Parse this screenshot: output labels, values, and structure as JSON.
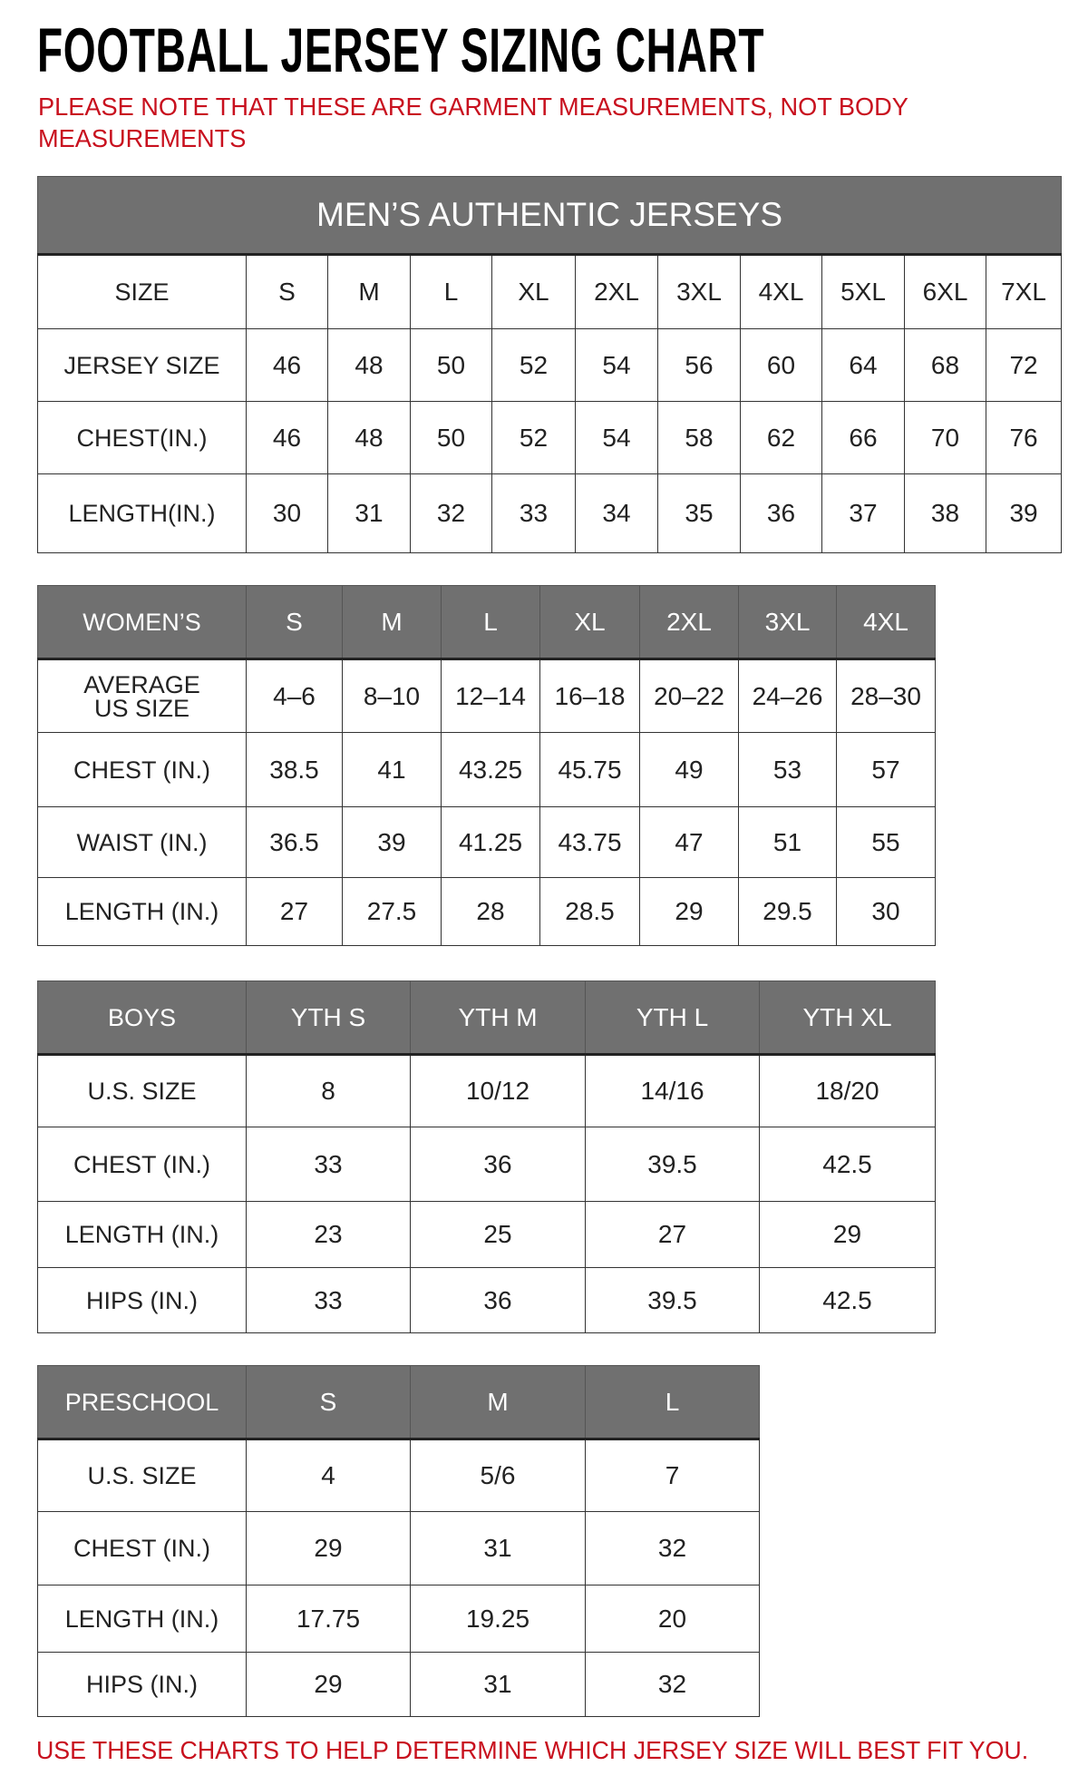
{
  "title": "FOOTBALL JERSEY SIZING CHART",
  "note": "PLEASE NOTE THAT THESE ARE GARMENT MEASUREMENTS, NOT BODY MEASUREMENTS",
  "footer": "USE THESE CHARTS TO HELP DETERMINE WHICH JERSEY SIZE WILL BEST FIT YOU.",
  "colors": {
    "header_bg": "#707070",
    "note_red": "#c8101e"
  },
  "tables": [
    {
      "id": "mens",
      "title": "MEN’S AUTHENTIC JERSEYS",
      "header": [
        "SIZE",
        "S",
        "M",
        "L",
        "XL",
        "2XL",
        "3XL",
        "4XL",
        "5XL",
        "6XL",
        "7XL"
      ],
      "header_style": "plain",
      "rows": [
        [
          "JERSEY SIZE",
          "46",
          "48",
          "50",
          "52",
          "54",
          "56",
          "60",
          "64",
          "68",
          "72"
        ],
        [
          "CHEST(IN.)",
          "46",
          "48",
          "50",
          "52",
          "54",
          "58",
          "62",
          "66",
          "70",
          "76"
        ],
        [
          "LENGTH(IN.)",
          "30",
          "31",
          "32",
          "33",
          "34",
          "35",
          "36",
          "37",
          "38",
          "39"
        ]
      ]
    },
    {
      "id": "womens",
      "header": [
        "WOMEN’S",
        "S",
        "M",
        "L",
        "XL",
        "2XL",
        "3XL",
        "4XL"
      ],
      "header_style": "gray",
      "rows": [
        [
          "AVERAGE\nUS SIZE",
          "4–6",
          "8–10",
          "12–14",
          "16–18",
          "20–22",
          "24–26",
          "28–30"
        ],
        [
          "CHEST (IN.)",
          "38.5",
          "41",
          "43.25",
          "45.75",
          "49",
          "53",
          "57"
        ],
        [
          "WAIST (IN.)",
          "36.5",
          "39",
          "41.25",
          "43.75",
          "47",
          "51",
          "55"
        ],
        [
          "LENGTH (IN.)",
          "27",
          "27.5",
          "28",
          "28.5",
          "29",
          "29.5",
          "30"
        ]
      ]
    },
    {
      "id": "boys",
      "header": [
        "BOYS",
        "YTH S",
        "YTH M",
        "YTH L",
        "YTH XL"
      ],
      "header_style": "gray",
      "rows": [
        [
          "U.S. SIZE",
          "8",
          "10/12",
          "14/16",
          "18/20"
        ],
        [
          "CHEST (IN.)",
          "33",
          "36",
          "39.5",
          "42.5"
        ],
        [
          "LENGTH (IN.)",
          "23",
          "25",
          "27",
          "29"
        ],
        [
          "HIPS (IN.)",
          "33",
          "36",
          "39.5",
          "42.5"
        ]
      ]
    },
    {
      "id": "preschool",
      "header": [
        "PRESCHOOL",
        "S",
        "M",
        "L"
      ],
      "header_style": "gray",
      "rows": [
        [
          "U.S. SIZE",
          "4",
          "5/6",
          "7"
        ],
        [
          "CHEST (IN.)",
          "29",
          "31",
          "32"
        ],
        [
          "LENGTH (IN.)",
          "17.75",
          "19.25",
          "20"
        ],
        [
          "HIPS (IN.)",
          "29",
          "31",
          "32"
        ]
      ]
    }
  ]
}
